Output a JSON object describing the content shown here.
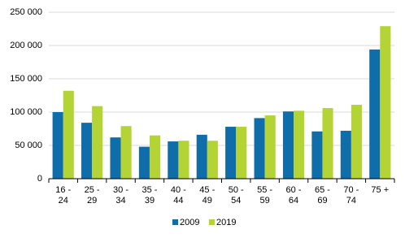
{
  "chart_data": {
    "type": "bar",
    "categories": [
      "16 - 24",
      "25 - 29",
      "30 - 34",
      "35 - 39",
      "40 - 44",
      "45 - 49",
      "50 - 54",
      "55 - 59",
      "60 - 64",
      "65 - 69",
      "70 - 74",
      "75 +"
    ],
    "series": [
      {
        "name": "2009",
        "color": "#0f6eaa",
        "values": [
          100000,
          84000,
          62000,
          48000,
          56000,
          66000,
          78000,
          91000,
          101000,
          71000,
          72000,
          194000
        ]
      },
      {
        "name": "2019",
        "color": "#b4d335",
        "values": [
          132000,
          109000,
          79000,
          65000,
          57000,
          57000,
          78000,
          95000,
          102000,
          106000,
          111000,
          229000
        ]
      }
    ],
    "ylim": [
      0,
      250000
    ],
    "yticks": [
      0,
      {
        "value": 50000,
        "label": "50 000"
      },
      {
        "value": 100000,
        "label": "100 000"
      },
      {
        "value": 150000,
        "label": "150 000"
      },
      {
        "value": 200000,
        "label": "200 000"
      },
      {
        "value": 250000,
        "label": "250 000"
      }
    ],
    "grid": true
  }
}
